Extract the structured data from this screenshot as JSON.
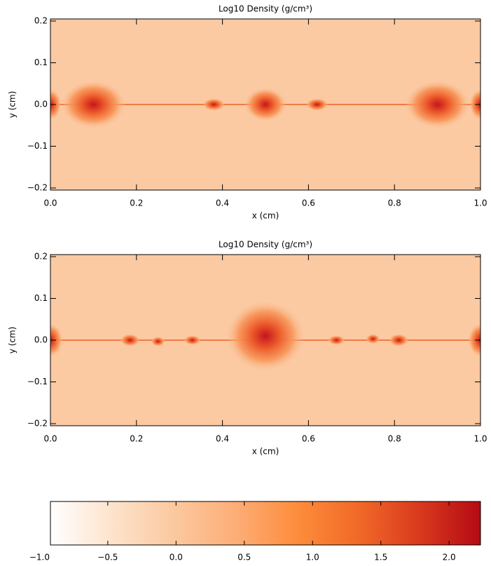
{
  "chart_data": [
    {
      "type": "heatmap",
      "title": "Log10 Density (g/cm³)",
      "x_label": "x (cm)",
      "y_label": "y (cm)",
      "xlim": [
        0,
        1
      ],
      "ylim": [
        -0.205,
        0.205
      ],
      "xticks": [
        {
          "value": 0,
          "label": "0.0"
        },
        0.2,
        0.4,
        0.6,
        0.8,
        {
          "value": 1,
          "label": "1.0"
        }
      ],
      "yticks": [
        {
          "value": -0.2,
          "label": "−0.2"
        },
        {
          "value": -0.1,
          "label": "−0.1"
        },
        {
          "value": 0,
          "label": "0.0"
        },
        0.1,
        0.2
      ]
    },
    {
      "type": "heatmap",
      "title": "Log10 Density (g/cm³)",
      "x_label": "x (cm)",
      "y_label": "y (cm)",
      "xlim": [
        0,
        1
      ],
      "ylim": [
        -0.205,
        0.205
      ],
      "xticks": [
        {
          "value": 0,
          "label": "0.0"
        },
        0.2,
        0.4,
        0.6,
        0.8,
        {
          "value": 1,
          "label": "1.0"
        }
      ],
      "yticks": [
        {
          "value": -0.2,
          "label": "−0.2"
        },
        {
          "value": -0.1,
          "label": "−0.1"
        },
        {
          "value": 0,
          "label": "0.0"
        },
        0.1,
        0.2
      ]
    },
    {
      "type": "colorbar",
      "xlim": [
        -0.92,
        2.23
      ],
      "xticks": [
        {
          "value": -1,
          "label": "−1.0"
        },
        {
          "value": -0.5,
          "label": "−0.5"
        },
        {
          "value": 0,
          "label": "0.0"
        },
        0.5,
        {
          "value": 1,
          "label": "1.0"
        },
        1.5,
        {
          "value": 2,
          "label": "2.0"
        }
      ],
      "colormap": [
        "#ffffff",
        "#fde3cc",
        "#fbc9a0",
        "#fdae78",
        "#fd8d3c",
        "#f16a28",
        "#d93a1e",
        "#b50a14"
      ]
    }
  ]
}
